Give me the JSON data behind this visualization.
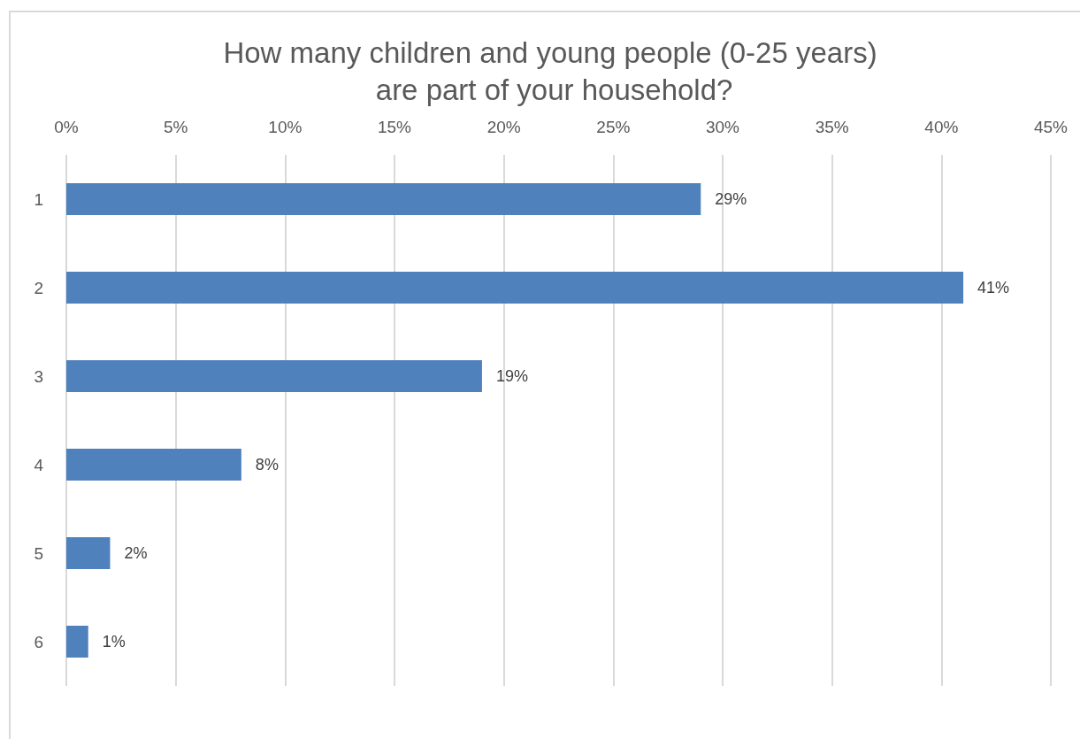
{
  "chart_data": {
    "type": "bar",
    "orientation": "horizontal",
    "title": "How many children and young people (0-25 years) are part of your household?",
    "categories": [
      "1",
      "2",
      "3",
      "4",
      "5",
      "6"
    ],
    "values": [
      29,
      41,
      19,
      8,
      2,
      1
    ],
    "value_labels": [
      "29%",
      "41%",
      "19%",
      "8%",
      "2%",
      "1%"
    ],
    "color": "#4f81bd",
    "xlim": [
      0,
      45
    ],
    "xticks": [
      {
        "value": 0,
        "label": "0%"
      },
      {
        "value": 5,
        "label": "5%"
      },
      {
        "value": 10,
        "label": "10%"
      },
      {
        "value": 15,
        "label": "15%"
      },
      {
        "value": 20,
        "label": "20%"
      },
      {
        "value": 25,
        "label": "25%"
      },
      {
        "value": 30,
        "label": "30%"
      },
      {
        "value": 35,
        "label": "35%"
      },
      {
        "value": 40,
        "label": "40%"
      },
      {
        "value": 45,
        "label": "45%"
      }
    ],
    "grid": "x"
  }
}
